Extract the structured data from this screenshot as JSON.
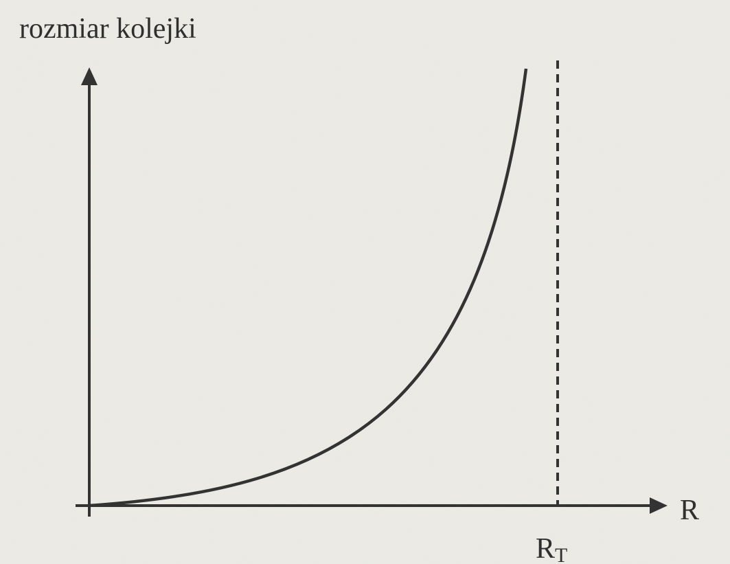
{
  "y_axis_label": "rozmiar kolejki",
  "x_axis_label": "R",
  "asymptote_label": {
    "main": "R",
    "subscript": "T"
  }
}
